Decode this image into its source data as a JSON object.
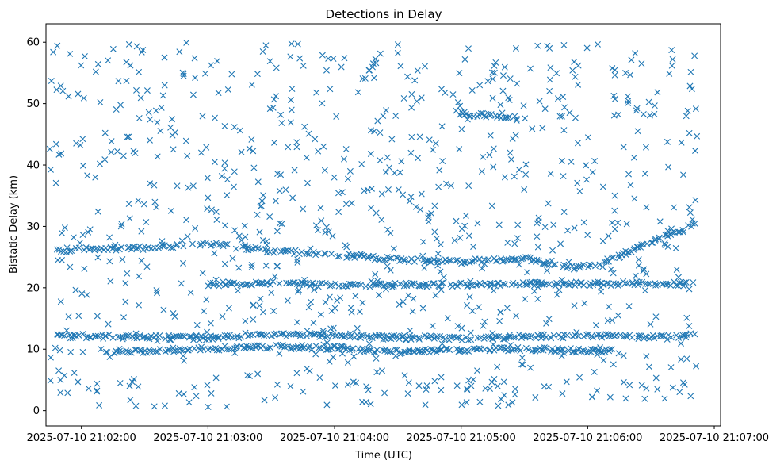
{
  "chart_data": {
    "type": "scatter",
    "title": "Detections in Delay",
    "xlabel": "Time (UTC)",
    "ylabel": "Bistatic Delay (km)",
    "xlim": [
      -0.28,
      5.05
    ],
    "ylim": [
      -2.5,
      63
    ],
    "x_unit": "minutes after 2025-07-10 21:02:00 UTC",
    "x_ticks": [
      {
        "value": 0,
        "label": "2025-07-10 21:02:00"
      },
      {
        "value": 1,
        "label": "2025-07-10 21:03:00"
      },
      {
        "value": 2,
        "label": "2025-07-10 21:04:00"
      },
      {
        "value": 3,
        "label": "2025-07-10 21:05:00"
      },
      {
        "value": 4,
        "label": "2025-07-10 21:06:00"
      },
      {
        "value": 5,
        "label": "2025-07-10 21:07:00"
      }
    ],
    "y_ticks": [
      {
        "value": 0,
        "label": "0"
      },
      {
        "value": 10,
        "label": "10"
      },
      {
        "value": 20,
        "label": "20"
      },
      {
        "value": 30,
        "label": "30"
      },
      {
        "value": 40,
        "label": "40"
      },
      {
        "value": 50,
        "label": "50"
      },
      {
        "value": 60,
        "label": "60"
      }
    ],
    "marker": "x",
    "color": "#1f77b4",
    "grid": false,
    "legend": "none",
    "series": [
      {
        "name": "Detections",
        "x_range": [
          -0.25,
          4.87
        ],
        "description": "approx. 1500 detections: continuous tracks near 26 km (drifting to 24 km, then rising to 30 km after 21:06), near 12 km and 10 km, a short segment near 48 km around 21:05, plus uniformly scattered clutter between 0 and 60 km",
        "tracks": [
          {
            "name": "track-26km",
            "points": [
              [
                -0.2,
                26.2
              ],
              [
                0.5,
                26.5
              ],
              [
                1.0,
                27.2
              ],
              [
                1.5,
                26.0
              ],
              [
                2.0,
                25.4
              ],
              [
                2.5,
                24.6
              ],
              [
                3.0,
                24.3
              ],
              [
                3.5,
                24.8
              ],
              [
                3.9,
                23.2
              ],
              [
                4.1,
                24.0
              ],
              [
                4.4,
                26.5
              ],
              [
                4.85,
                30.5
              ]
            ]
          },
          {
            "name": "track-12km",
            "points": [
              [
                -0.2,
                12.2
              ],
              [
                0.5,
                12.0
              ],
              [
                1.0,
                11.8
              ],
              [
                1.5,
                12.3
              ],
              [
                2.0,
                12.3
              ],
              [
                2.5,
                11.9
              ],
              [
                3.0,
                11.8
              ],
              [
                3.5,
                12.0
              ],
              [
                4.0,
                12.2
              ],
              [
                4.5,
                12.0
              ],
              [
                4.85,
                12.3
              ]
            ]
          },
          {
            "name": "track-10km",
            "points": [
              [
                0.2,
                9.5
              ],
              [
                0.5,
                9.7
              ],
              [
                1.0,
                10.1
              ],
              [
                1.5,
                10.4
              ],
              [
                2.0,
                10.2
              ],
              [
                2.5,
                9.6
              ],
              [
                3.0,
                9.8
              ],
              [
                3.5,
                10.1
              ],
              [
                4.0,
                9.7
              ],
              [
                4.2,
                9.8
              ]
            ]
          },
          {
            "name": "track-48km",
            "points": [
              [
                2.95,
                48.5
              ],
              [
                3.2,
                48.1
              ],
              [
                3.45,
                47.7
              ]
            ]
          },
          {
            "name": "track-21km",
            "points": [
              [
                1.0,
                20.6
              ],
              [
                1.5,
                20.8
              ],
              [
                2.0,
                20.4
              ],
              [
                4.3,
                20.7
              ],
              [
                4.85,
                20.6
              ]
            ]
          }
        ],
        "clutter": {
          "count": 900,
          "y_range": [
            0.5,
            60
          ]
        }
      }
    ]
  }
}
